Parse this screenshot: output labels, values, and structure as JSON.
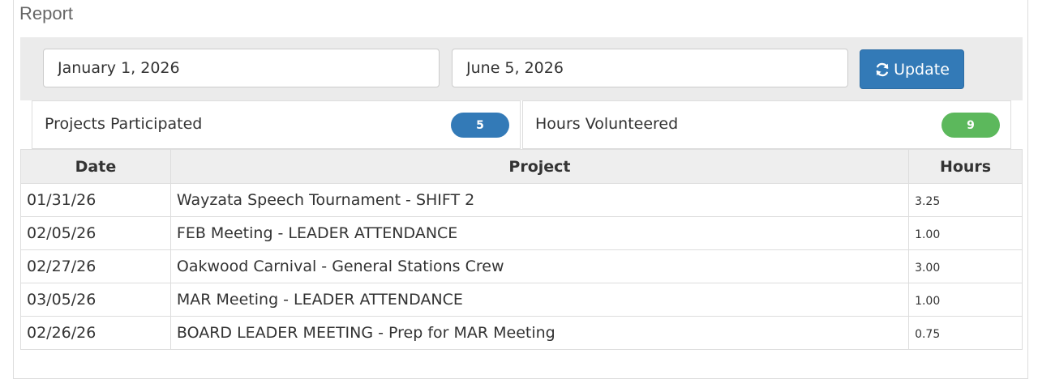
{
  "panel": {
    "title": "Report"
  },
  "filters": {
    "start_date": "January 1, 2026",
    "end_date": "June 5, 2026",
    "update_label": "Update",
    "update_icon": "refresh-icon"
  },
  "stats": {
    "projects_label": "Projects Participated",
    "projects_count": "5",
    "hours_label": "Hours Volunteered",
    "hours_count": "9",
    "colors": {
      "primary": "#337ab7",
      "success": "#5cb85c"
    }
  },
  "table": {
    "headers": {
      "date": "Date",
      "project": "Project",
      "hours": "Hours"
    },
    "rows": [
      {
        "date": "01/31/26",
        "project": "Wayzata Speech Tournament - SHIFT 2",
        "hours": "3.25"
      },
      {
        "date": "02/05/26",
        "project": "FEB Meeting - LEADER ATTENDANCE",
        "hours": "1.00"
      },
      {
        "date": "02/27/26",
        "project": "Oakwood Carnival - General Stations Crew",
        "hours": "3.00"
      },
      {
        "date": "03/05/26",
        "project": "MAR Meeting - LEADER ATTENDANCE",
        "hours": "1.00"
      },
      {
        "date": "02/26/26",
        "project": "BOARD LEADER MEETING - Prep for MAR Meeting",
        "hours": "0.75"
      }
    ]
  }
}
